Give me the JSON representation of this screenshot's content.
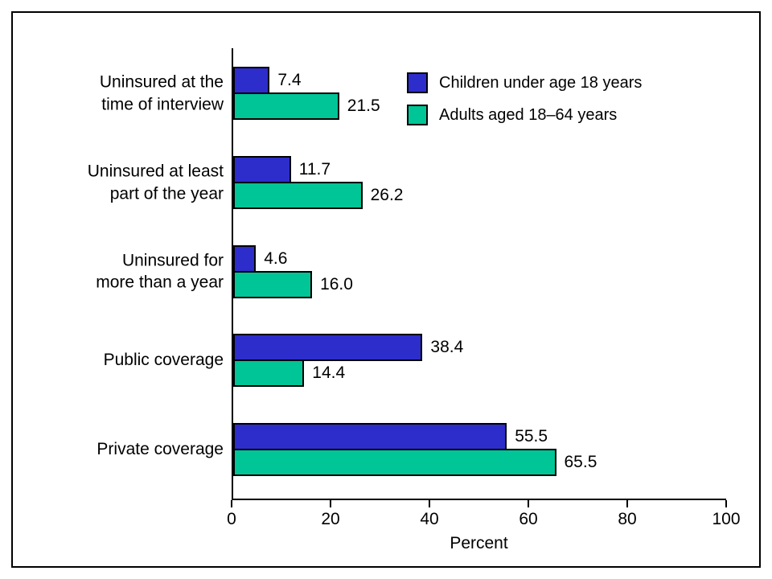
{
  "chart_data": {
    "type": "bar",
    "orientation": "horizontal",
    "categories": [
      "Uninsured at the\ntime of interview",
      "Uninsured at least\npart of the year",
      "Uninsured for\nmore than a year",
      "Public coverage",
      "Private coverage"
    ],
    "series": [
      {
        "name": "Children under age 18 years",
        "color": "#2d2dcb",
        "values": [
          7.4,
          11.7,
          4.6,
          38.4,
          55.5
        ],
        "value_labels": [
          "7.4",
          "11.7",
          "4.6",
          "38.4",
          "55.5"
        ]
      },
      {
        "name": "Adults aged 18–64 years",
        "color": "#00c596",
        "values": [
          21.5,
          26.2,
          16.0,
          14.4,
          65.5
        ],
        "value_labels": [
          "21.5",
          "26.2",
          "16.0",
          "14.4",
          "65.5"
        ]
      }
    ],
    "xlabel": "Percent",
    "xlim": [
      0,
      100
    ],
    "xticks": [
      0,
      20,
      40,
      60,
      80,
      100
    ],
    "legend_position": "top-right-inside",
    "grid": false
  }
}
